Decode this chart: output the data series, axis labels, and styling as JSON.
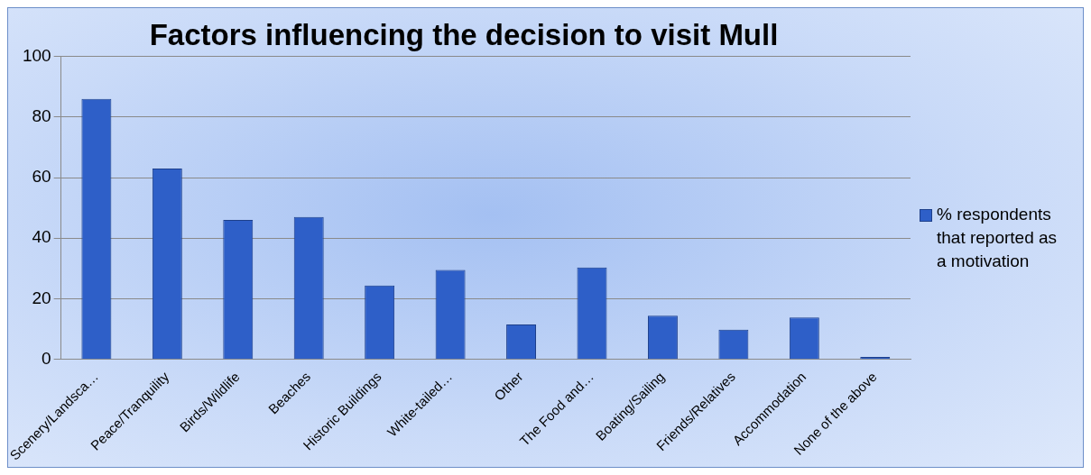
{
  "chart_data": {
    "type": "bar",
    "title": "Factors influencing the decision to visit Mull",
    "categories": [
      "Scenery/Landsca…",
      "Peace/Tranquility",
      "Birds/Wildlife",
      "Beaches",
      "Historic Buildings",
      "White-tailed…",
      "Other",
      "The Food and…",
      "Boating/Sailing",
      "Friends/Relatives",
      "Accommodation",
      "None of the above"
    ],
    "series": [
      {
        "name": "% respondents that reported as a motivation",
        "color": "#2e5fc8",
        "values": [
          86,
          63,
          46,
          47,
          24.4,
          29.5,
          11.5,
          30.3,
          14.4,
          9.8,
          13.8,
          0.8
        ]
      }
    ],
    "ylim": [
      0,
      100
    ],
    "yticks": [
      0,
      20,
      40,
      60,
      80,
      100
    ],
    "grid": "y",
    "legend": "right"
  }
}
